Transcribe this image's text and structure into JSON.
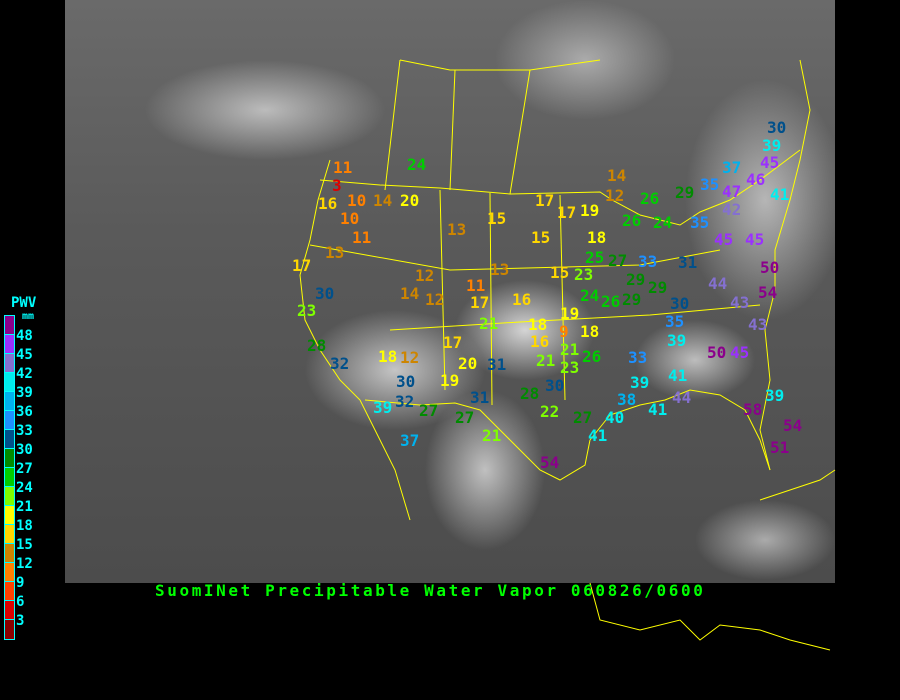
{
  "title": "SuomINet Precipitable Water Vapor 060826/0600",
  "legend": {
    "title": "PWV",
    "unit": "mm",
    "ticks": [
      "48",
      "45",
      "42",
      "39",
      "36",
      "33",
      "30",
      "27",
      "24",
      "21",
      "18",
      "15",
      "12",
      "9",
      "6",
      "3"
    ],
    "colors": [
      "#8b008b",
      "#9b30ff",
      "#8470d0",
      "#00eeee",
      "#00b2ee",
      "#1e90ff",
      "#00508b",
      "#008b00",
      "#00cd00",
      "#7fff00",
      "#ffff00",
      "#ffd700",
      "#cd8500",
      "#ff8000",
      "#ff4000",
      "#dd0000",
      "#8b0000"
    ]
  },
  "colors": {
    "border": "#ffff00",
    "title": "#00ff00",
    "legend_text": "#00ffff"
  },
  "stations": [
    "11",
    "3",
    "16",
    "10",
    "14",
    "20",
    "10",
    "24",
    "11",
    "13",
    "17",
    "13",
    "15",
    "13",
    "12",
    "14",
    "12",
    "11",
    "17",
    "16",
    "30",
    "23",
    "28",
    "32",
    "18",
    "12",
    "30",
    "20",
    "19",
    "31",
    "17",
    "21",
    "32",
    "39",
    "27",
    "27",
    "31",
    "37",
    "21",
    "17",
    "17",
    "19",
    "15",
    "14",
    "12",
    "18",
    "26",
    "26",
    "29",
    "24",
    "25",
    "23",
    "27",
    "15",
    "33",
    "31",
    "29",
    "29",
    "30",
    "24",
    "26",
    "29",
    "19",
    "18",
    "9",
    "18",
    "16",
    "21",
    "21",
    "23",
    "26",
    "30",
    "28",
    "22",
    "27",
    "54",
    "41",
    "40",
    "38",
    "39",
    "33",
    "41",
    "44",
    "41",
    "39",
    "35",
    "50",
    "45",
    "43",
    "58",
    "39",
    "54",
    "51",
    "30",
    "39",
    "37",
    "45",
    "46",
    "47",
    "41",
    "35",
    "42",
    "35",
    "45",
    "45",
    "50",
    "54",
    "44",
    "43"
  ]
}
